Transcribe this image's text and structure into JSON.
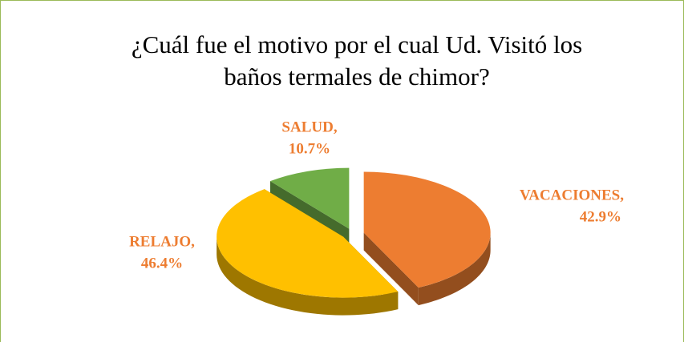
{
  "chart_data": {
    "type": "pie3d",
    "title": "¿Cuál fue el motivo por el cual Ud. Visitó los baños termales de chimor?",
    "categories": [
      "VACACIONES,",
      "RELAJO,",
      "SALUD,"
    ],
    "values": [
      42.9,
      46.4,
      10.7
    ],
    "value_labels": [
      "42.9%",
      "46.4%",
      "10.7%"
    ],
    "colors": [
      "#ED7D31",
      "#FFC000",
      "#70AD47"
    ],
    "label_color": "#ED7D31"
  }
}
